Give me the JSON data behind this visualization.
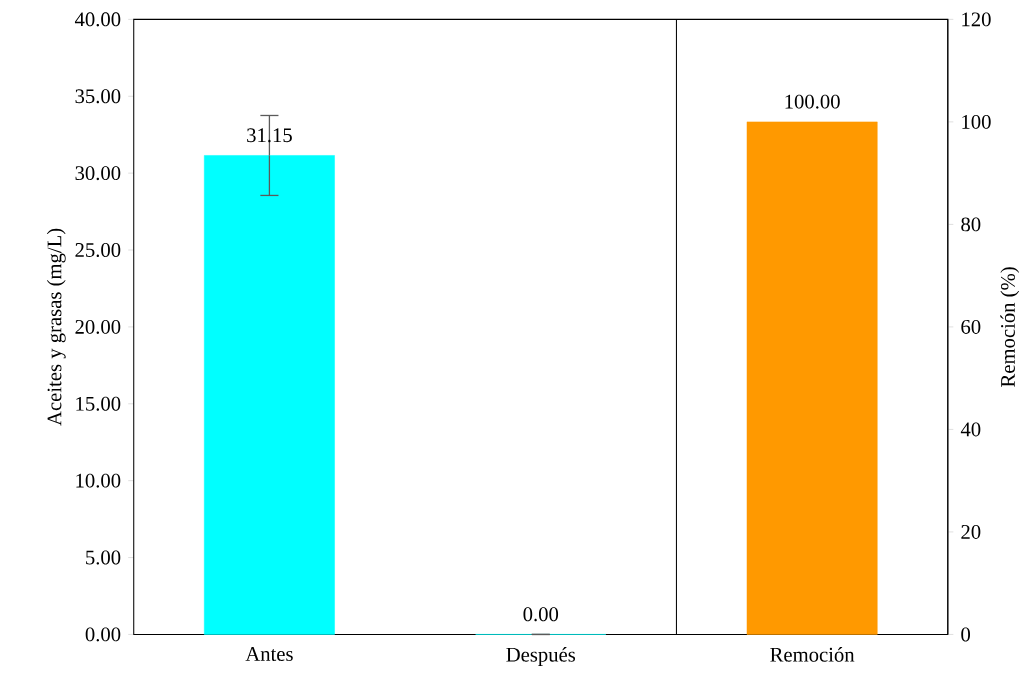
{
  "chart_data": {
    "type": "bar",
    "ylabel": "Aceites y grasas (mg/L)",
    "y2label": "Remoción (%)",
    "categories": [
      "Antes",
      "Después",
      "Remoción"
    ],
    "series": [
      {
        "color": "#00ffff",
        "values": [
          31.15,
          0.0,
          null
        ],
        "errors": [
          2.6,
          null,
          null
        ],
        "value_labels": [
          "31.15",
          "0.00",
          null
        ],
        "axis": "y"
      },
      {
        "color": "#ff9900",
        "values": [
          null,
          null,
          100.0
        ],
        "value_labels": [
          null,
          null,
          "100.00"
        ],
        "axis": "y2"
      }
    ],
    "ylim": [
      0,
      40
    ],
    "yticks": [
      {
        "value": 0,
        "label": "0.00"
      },
      {
        "value": 5,
        "label": "5.00"
      },
      {
        "value": 10,
        "label": "10.00"
      },
      {
        "value": 15,
        "label": "15.00"
      },
      {
        "value": 20,
        "label": "20.00"
      },
      {
        "value": 25,
        "label": "25.00"
      },
      {
        "value": 30,
        "label": "30.00"
      },
      {
        "value": 35,
        "label": "35.00"
      },
      {
        "value": 40,
        "label": "40.00"
      }
    ],
    "y2lim": [
      0,
      120
    ],
    "y2ticks": [
      0,
      20,
      40,
      60,
      80,
      100,
      120
    ],
    "grid": false
  }
}
